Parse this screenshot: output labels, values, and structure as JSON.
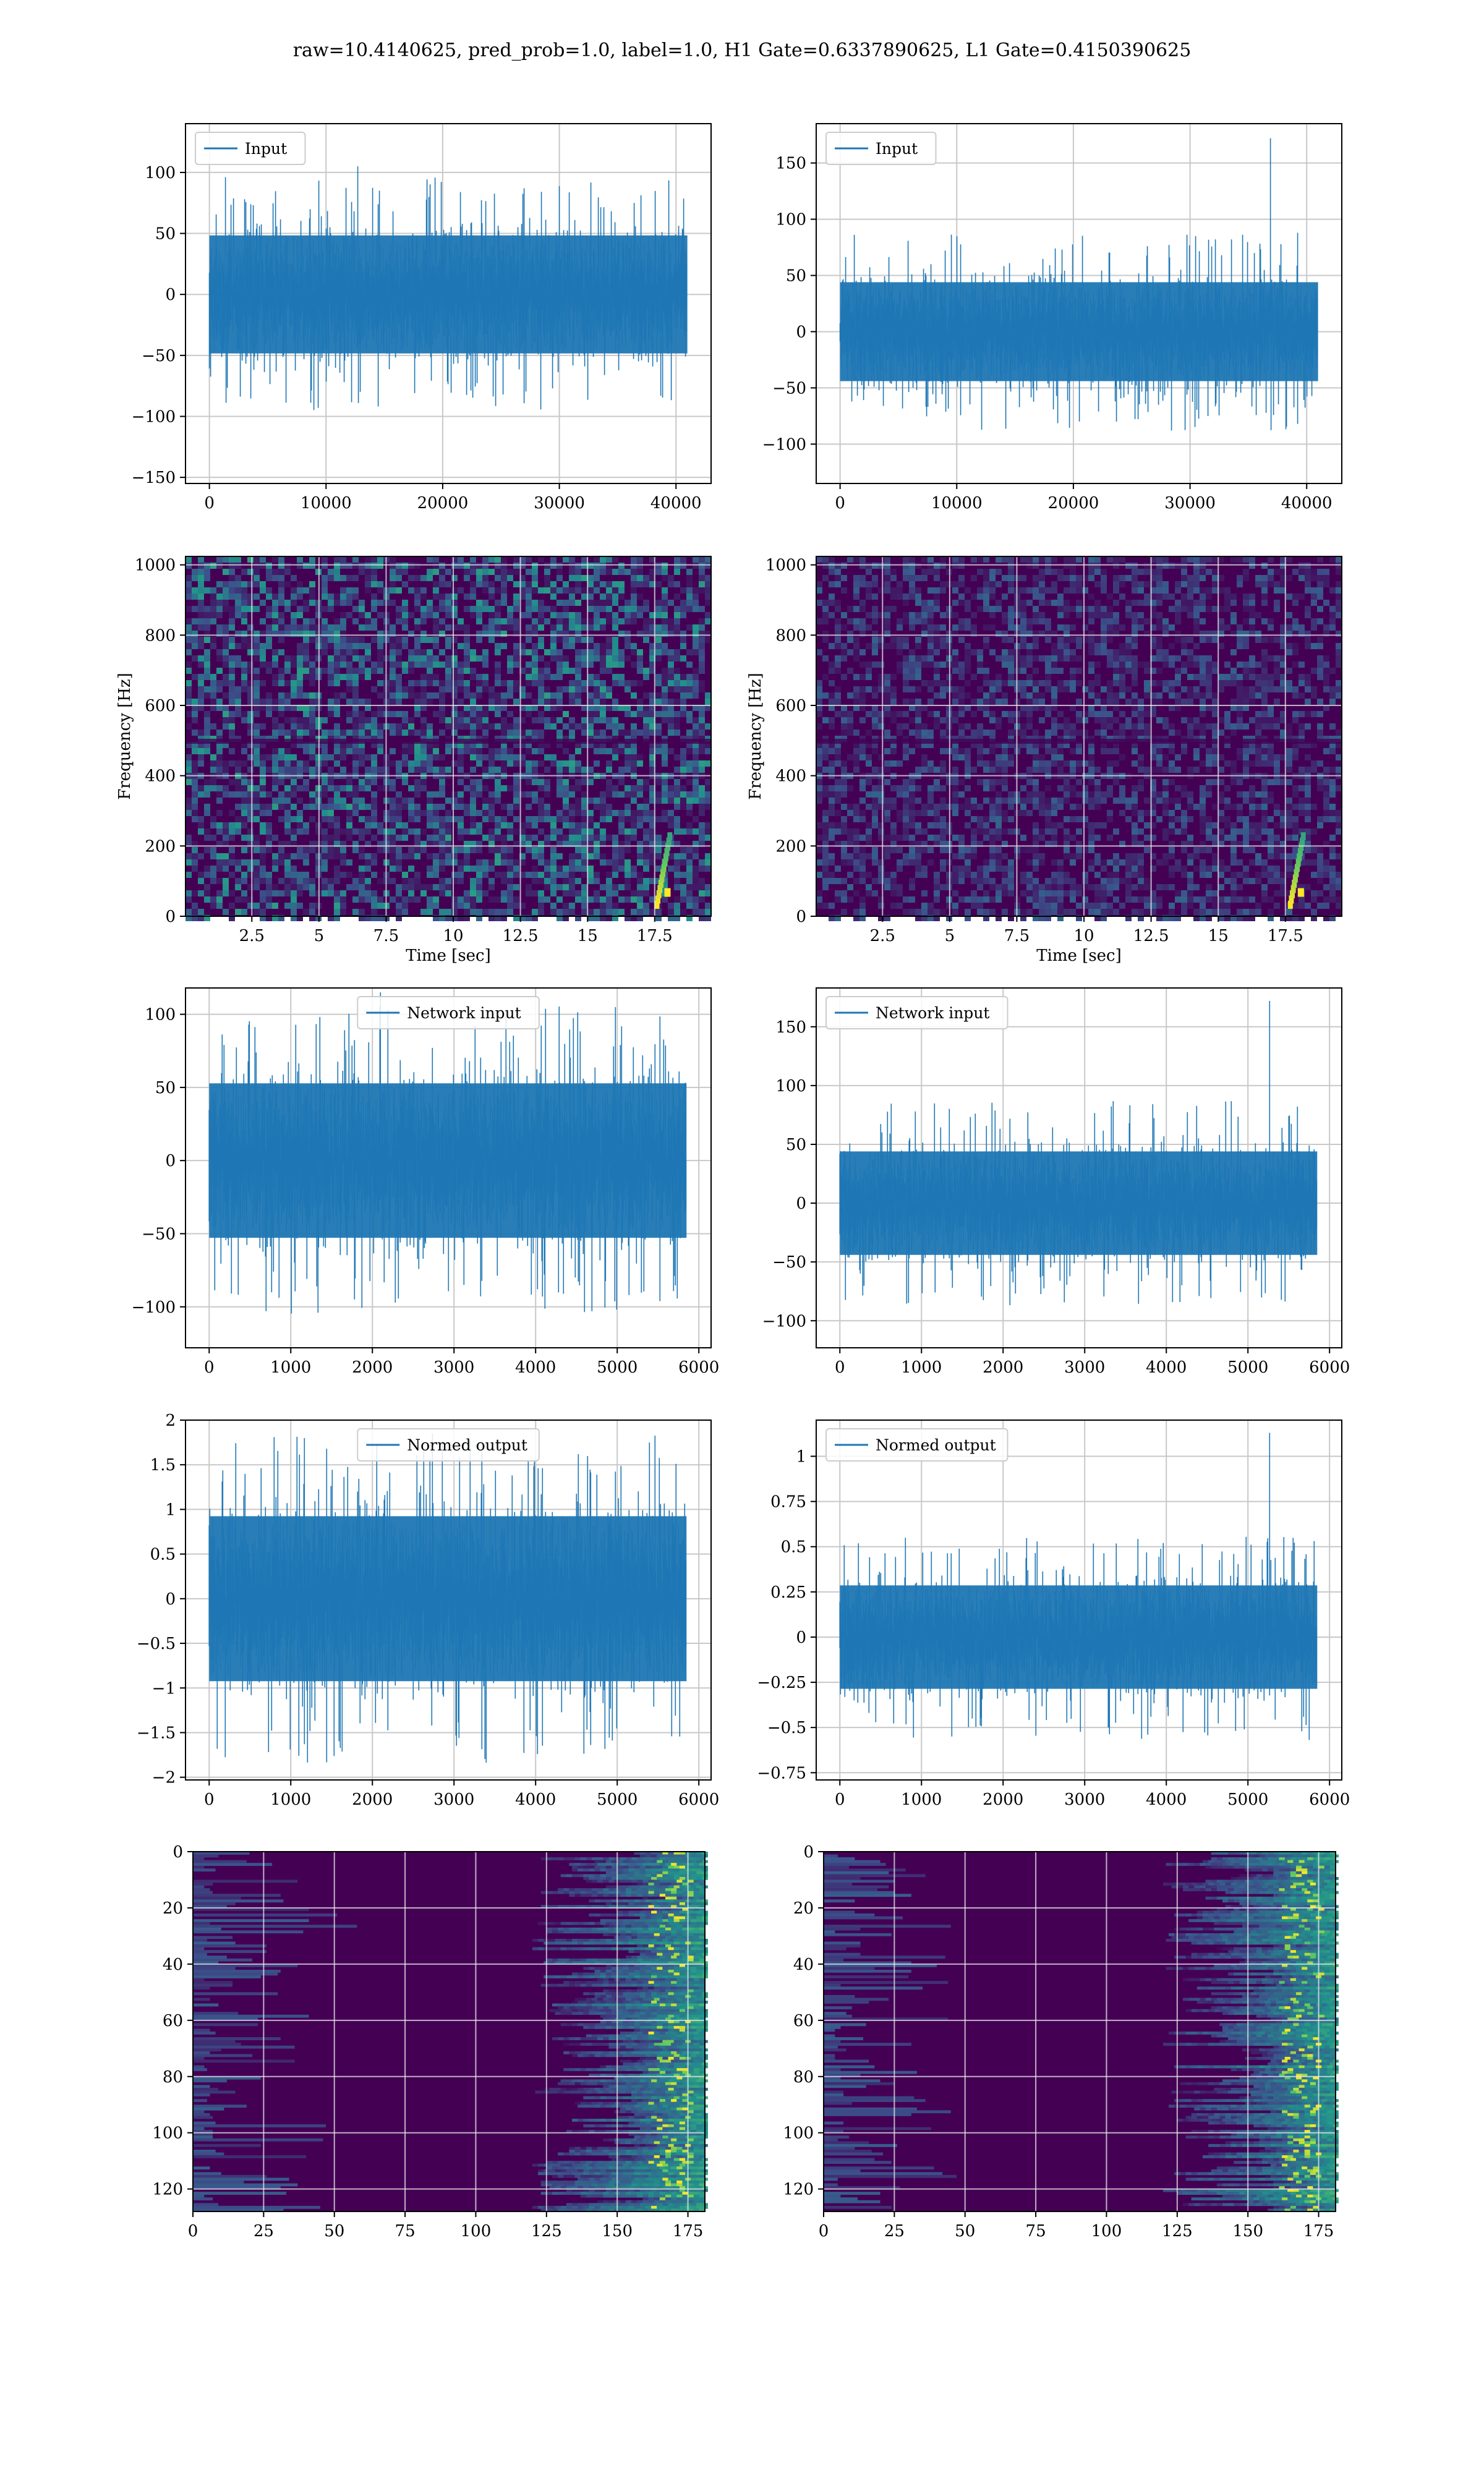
{
  "title": "raw=10.4140625, pred_prob=1.0, label=1.0, H1 Gate=0.6337890625, L1 Gate=0.4150390625",
  "colors": {
    "line": "#1f77b4",
    "grid": "#c8c8c8",
    "viridis_dark": "#440154",
    "viridis_mid": "#21918c",
    "viridis_bright": "#fde725"
  },
  "chart_data": [
    {
      "id": "input-h1",
      "type": "line",
      "legend": "Input",
      "legend_loc": "upper left",
      "xlim": [
        -2048,
        43008
      ],
      "ylim": [
        -155,
        140
      ],
      "xticks": [
        0,
        10000,
        20000,
        30000,
        40000
      ],
      "yticks": [
        -150,
        -100,
        -50,
        0,
        50,
        100
      ],
      "n": 40960,
      "amp": 22,
      "spike": 105,
      "grid": true
    },
    {
      "id": "input-l1",
      "type": "line",
      "legend": "Input",
      "legend_loc": "upper left",
      "xlim": [
        -2048,
        43008
      ],
      "ylim": [
        -135,
        185
      ],
      "xticks": [
        0,
        10000,
        20000,
        30000,
        40000
      ],
      "yticks": [
        -100,
        -50,
        0,
        50,
        100,
        150
      ],
      "n": 40960,
      "amp": 20,
      "spike": 172,
      "spike_at": 0.9,
      "grid": true
    },
    {
      "id": "spec-h1",
      "type": "heatmap",
      "xlabel": "Time [sec]",
      "ylabel": "Frequency [Hz]",
      "xlim": [
        0.03,
        19.6
      ],
      "ylim": [
        0,
        1024
      ],
      "xticks": [
        2.5,
        5.0,
        7.5,
        10.0,
        12.5,
        15.0,
        17.5
      ],
      "yticks": [
        0,
        200,
        400,
        600,
        800,
        1000
      ],
      "chirp_t": 18.0,
      "grid": true
    },
    {
      "id": "spec-l1",
      "type": "heatmap",
      "xlabel": "Time [sec]",
      "ylabel": "Frequency [Hz]",
      "xlim": [
        0.03,
        19.6
      ],
      "ylim": [
        0,
        1024
      ],
      "xticks": [
        2.5,
        5.0,
        7.5,
        10.0,
        12.5,
        15.0,
        17.5
      ],
      "yticks": [
        0,
        200,
        400,
        600,
        800,
        1000
      ],
      "chirp_t": 18.1,
      "grid": true
    },
    {
      "id": "net-h1",
      "type": "line",
      "legend": "Network input",
      "legend_loc": "upper center",
      "xlim": [
        -290,
        6150
      ],
      "ylim": [
        -128,
        118
      ],
      "xticks": [
        0,
        1000,
        2000,
        3000,
        4000,
        5000,
        6000
      ],
      "yticks": [
        -100,
        -50,
        0,
        50,
        100
      ],
      "n": 5850,
      "amp": 24,
      "spike": 115,
      "grid": true
    },
    {
      "id": "net-l1",
      "type": "line",
      "legend": "Network input",
      "legend_loc": "upper left",
      "xlim": [
        -290,
        6150
      ],
      "ylim": [
        -123,
        183
      ],
      "xticks": [
        0,
        1000,
        2000,
        3000,
        4000,
        5000,
        6000
      ],
      "yticks": [
        -100,
        -50,
        0,
        50,
        100,
        150
      ],
      "n": 5850,
      "amp": 20,
      "spike": 172,
      "spike_at": 0.9,
      "grid": true
    },
    {
      "id": "norm-h1",
      "type": "line",
      "legend": "Normed output",
      "legend_loc": "upper center",
      "xlim": [
        -290,
        6150
      ],
      "ylim": [
        -2.03,
        2.0
      ],
      "xticks": [
        0,
        1000,
        2000,
        3000,
        4000,
        5000,
        6000
      ],
      "yticks": [
        -2.0,
        -1.5,
        -1.0,
        -0.5,
        0.0,
        0.5,
        1.0,
        1.5,
        2.0
      ],
      "n": 5850,
      "amp": 0.42,
      "spike": 1.85,
      "grid": true
    },
    {
      "id": "norm-l1",
      "type": "line",
      "legend": "Normed output",
      "legend_loc": "upper left",
      "xlim": [
        -290,
        6150
      ],
      "ylim": [
        -0.79,
        1.2
      ],
      "xticks": [
        0,
        1000,
        2000,
        3000,
        4000,
        5000,
        6000
      ],
      "yticks": [
        -0.75,
        -0.5,
        -0.25,
        0.0,
        0.25,
        0.5,
        0.75,
        1.0
      ],
      "n": 5850,
      "amp": 0.13,
      "spike": 1.13,
      "spike_at": 0.9,
      "grid": true
    },
    {
      "id": "feat-h1",
      "type": "heatmap",
      "xlim": [
        0,
        181
      ],
      "ylim": [
        128,
        0
      ],
      "xticks": [
        0,
        25,
        50,
        75,
        100,
        125,
        150,
        175
      ],
      "yticks": [
        0,
        20,
        40,
        60,
        80,
        100,
        120
      ],
      "grid": true
    },
    {
      "id": "feat-l1",
      "type": "heatmap",
      "xlim": [
        0,
        181
      ],
      "ylim": [
        128,
        0
      ],
      "xticks": [
        0,
        25,
        50,
        75,
        100,
        125,
        150,
        175
      ],
      "yticks": [
        0,
        20,
        40,
        60,
        80,
        100,
        120
      ],
      "grid": true
    }
  ]
}
